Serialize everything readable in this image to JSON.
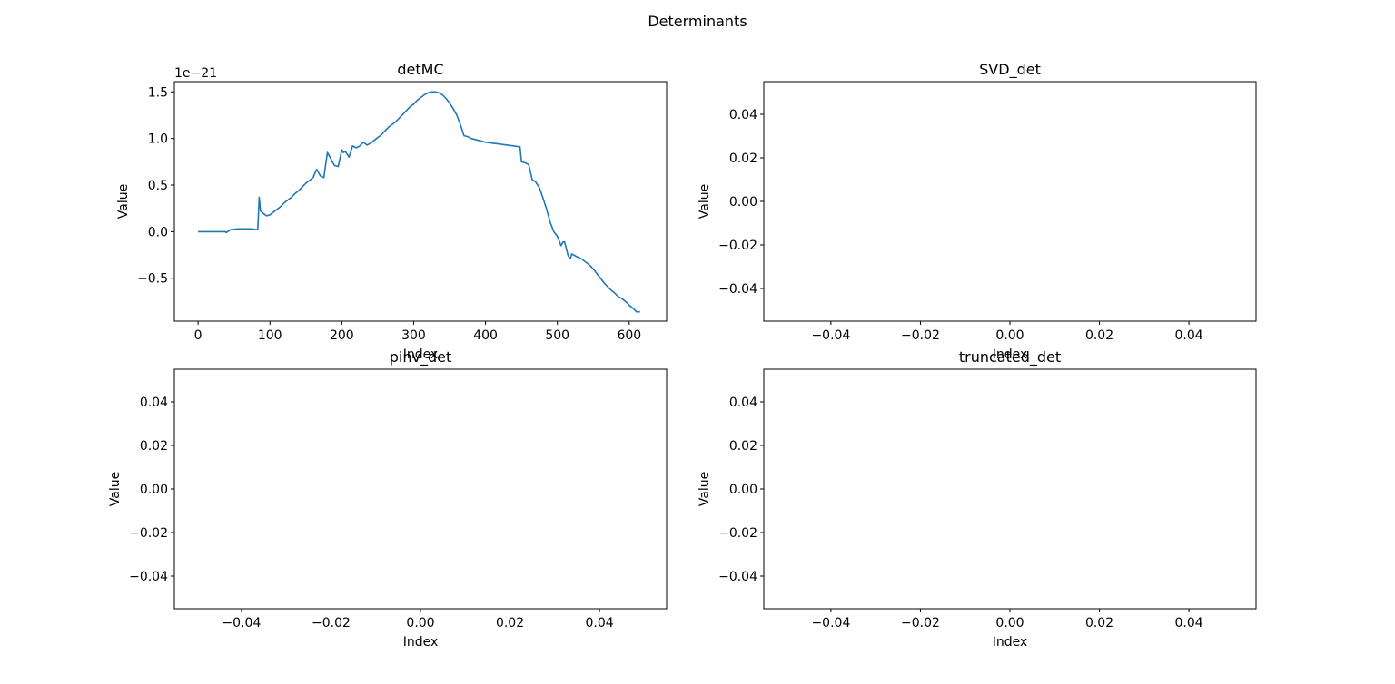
{
  "figure": {
    "suptitle": "Determinants"
  },
  "chart_data": [
    {
      "type": "line",
      "title": "detMC",
      "xlabel": "Index",
      "ylabel": "Value",
      "offset_text": "1e−21",
      "xlim": [
        -33,
        652
      ],
      "ylim": [
        -0.96,
        1.61
      ],
      "xticks": [
        0,
        100,
        200,
        300,
        400,
        500,
        600
      ],
      "xtick_labels": [
        "0",
        "100",
        "200",
        "300",
        "400",
        "500",
        "600"
      ],
      "yticks": [
        -0.5,
        0.0,
        0.5,
        1.0,
        1.5
      ],
      "ytick_labels": [
        "−0.5",
        "0.0",
        "0.5",
        "1.0",
        "1.5"
      ],
      "grid": false,
      "series": [
        {
          "color": "#1f77b4",
          "x": [
            0,
            38,
            39,
            45,
            55,
            65,
            75,
            83,
            85,
            87,
            95,
            100,
            105,
            110,
            115,
            120,
            125,
            130,
            135,
            140,
            145,
            150,
            155,
            160,
            165,
            170,
            175,
            180,
            185,
            186,
            190,
            195,
            200,
            202,
            205,
            210,
            215,
            220,
            225,
            230,
            235,
            240,
            245,
            250,
            255,
            260,
            265,
            270,
            275,
            280,
            285,
            290,
            295,
            300,
            305,
            310,
            315,
            320,
            325,
            330,
            335,
            340,
            345,
            350,
            355,
            360,
            365,
            370,
            375,
            380,
            390,
            400,
            410,
            420,
            430,
            440,
            448,
            450,
            455,
            460,
            465,
            470,
            475,
            480,
            485,
            490,
            495,
            500,
            505,
            508,
            510,
            512,
            515,
            518,
            520,
            525,
            530,
            535,
            540,
            545,
            550,
            555,
            560,
            565,
            570,
            575,
            580,
            585,
            590,
            595,
            600,
            605,
            610,
            615
          ],
          "y": [
            0.0,
            0.0,
            -0.01,
            0.02,
            0.03,
            0.03,
            0.03,
            0.02,
            0.37,
            0.22,
            0.17,
            0.18,
            0.21,
            0.24,
            0.27,
            0.31,
            0.34,
            0.37,
            0.41,
            0.44,
            0.48,
            0.52,
            0.55,
            0.58,
            0.67,
            0.6,
            0.58,
            0.85,
            0.78,
            0.76,
            0.71,
            0.7,
            0.88,
            0.85,
            0.86,
            0.8,
            0.92,
            0.9,
            0.92,
            0.96,
            0.93,
            0.95,
            0.98,
            1.01,
            1.04,
            1.08,
            1.12,
            1.15,
            1.18,
            1.22,
            1.26,
            1.3,
            1.34,
            1.37,
            1.41,
            1.44,
            1.47,
            1.49,
            1.5,
            1.5,
            1.49,
            1.47,
            1.43,
            1.38,
            1.32,
            1.25,
            1.15,
            1.03,
            1.02,
            1.0,
            0.98,
            0.96,
            0.95,
            0.94,
            0.93,
            0.92,
            0.91,
            0.75,
            0.74,
            0.72,
            0.56,
            0.53,
            0.47,
            0.36,
            0.24,
            0.1,
            0.0,
            -0.05,
            -0.15,
            -0.11,
            -0.11,
            -0.17,
            -0.26,
            -0.29,
            -0.24,
            -0.26,
            -0.28,
            -0.3,
            -0.33,
            -0.36,
            -0.4,
            -0.45,
            -0.5,
            -0.55,
            -0.59,
            -0.63,
            -0.66,
            -0.7,
            -0.72,
            -0.75,
            -0.79,
            -0.82,
            -0.86,
            -0.86
          ]
        }
      ]
    },
    {
      "type": "line",
      "title": "SVD_det",
      "xlabel": "Index",
      "ylabel": "Value",
      "xlim": [
        -0.055,
        0.055
      ],
      "ylim": [
        -0.055,
        0.055
      ],
      "xticks": [
        -0.04,
        -0.02,
        0.0,
        0.02,
        0.04
      ],
      "xtick_labels": [
        "−0.04",
        "−0.02",
        "0.00",
        "0.02",
        "0.04"
      ],
      "yticks": [
        -0.04,
        -0.02,
        0.0,
        0.02,
        0.04
      ],
      "ytick_labels": [
        "−0.04",
        "−0.02",
        "0.00",
        "0.02",
        "0.04"
      ],
      "grid": false,
      "series": []
    },
    {
      "type": "line",
      "title": "pinv_det",
      "xlabel": "Index",
      "ylabel": "Value",
      "xlim": [
        -0.055,
        0.055
      ],
      "ylim": [
        -0.055,
        0.055
      ],
      "xticks": [
        -0.04,
        -0.02,
        0.0,
        0.02,
        0.04
      ],
      "xtick_labels": [
        "−0.04",
        "−0.02",
        "0.00",
        "0.02",
        "0.04"
      ],
      "yticks": [
        -0.04,
        -0.02,
        0.0,
        0.02,
        0.04
      ],
      "ytick_labels": [
        "−0.04",
        "−0.02",
        "0.00",
        "0.02",
        "0.04"
      ],
      "grid": false,
      "series": []
    },
    {
      "type": "line",
      "title": "truncated_det",
      "xlabel": "Index",
      "ylabel": "Value",
      "xlim": [
        -0.055,
        0.055
      ],
      "ylim": [
        -0.055,
        0.055
      ],
      "xticks": [
        -0.04,
        -0.02,
        0.0,
        0.02,
        0.04
      ],
      "xtick_labels": [
        "−0.04",
        "−0.02",
        "0.00",
        "0.02",
        "0.04"
      ],
      "yticks": [
        -0.04,
        -0.02,
        0.0,
        0.02,
        0.04
      ],
      "ytick_labels": [
        "−0.04",
        "−0.02",
        "0.00",
        "0.02",
        "0.04"
      ],
      "grid": false,
      "series": []
    }
  ]
}
